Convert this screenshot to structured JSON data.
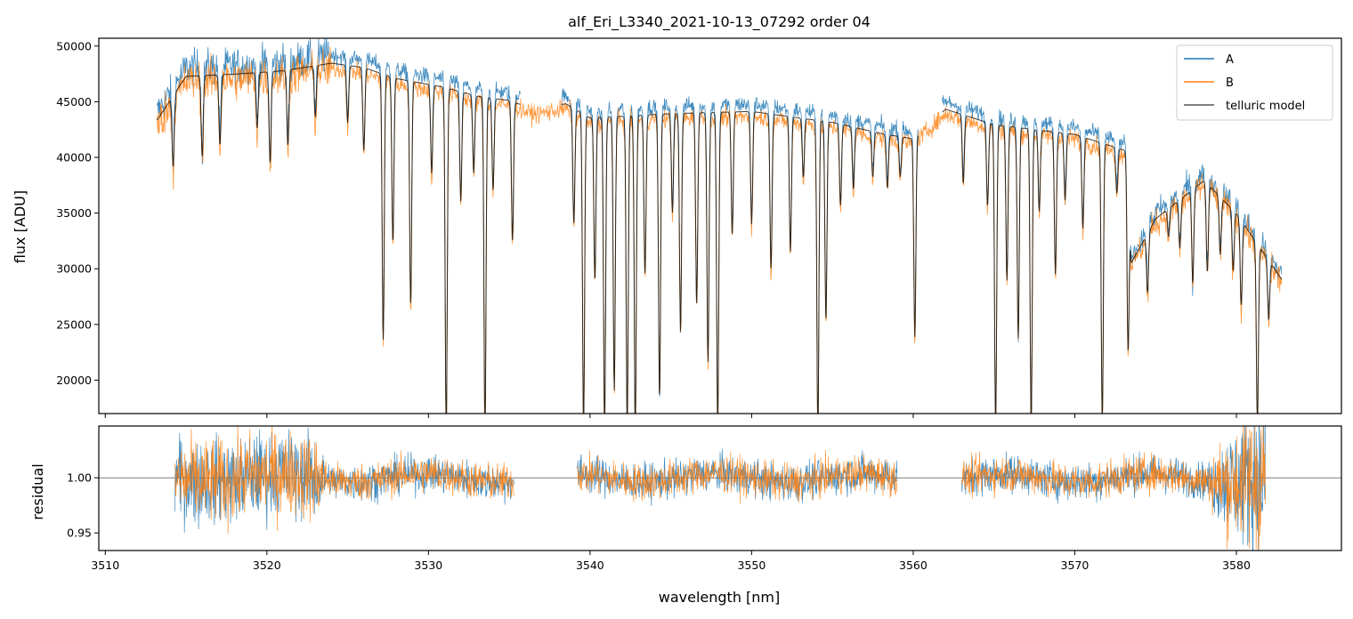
{
  "chart_data": [
    {
      "type": "line",
      "title": "alf_Eri_L3340_2021-10-13_07292  order 04",
      "xlabel": "",
      "ylabel": "flux [ADU]",
      "xlim": [
        3509.6,
        3586.5
      ],
      "ylim": [
        17000,
        50700
      ],
      "yticks": [
        20000,
        25000,
        30000,
        35000,
        40000,
        45000,
        50000
      ],
      "ytick_labels": [
        "20000",
        "25000",
        "30000",
        "35000",
        "40000",
        "45000",
        "50000"
      ],
      "legend": {
        "placement": "top-right",
        "entries": [
          "A",
          "B",
          "telluric model"
        ]
      },
      "series": [
        {
          "name": "A",
          "color": "#1f77b4"
        },
        {
          "name": "B",
          "color": "#ff7f0e"
        },
        {
          "name": "telluric model",
          "color": "#000000"
        }
      ],
      "continuum_points": [
        [
          3513.2,
          44000
        ],
        [
          3515,
          48000
        ],
        [
          3518,
          48200
        ],
        [
          3521,
          48500
        ],
        [
          3524,
          49200
        ],
        [
          3526,
          48800
        ],
        [
          3528,
          47800
        ],
        [
          3531,
          47000
        ],
        [
          3533,
          46200
        ],
        [
          3535,
          45800
        ],
        [
          3536.5,
          45000
        ],
        [
          3538.5,
          45500
        ],
        [
          3540,
          44200
        ],
        [
          3545,
          44600
        ],
        [
          3550,
          44800
        ],
        [
          3555,
          43800
        ],
        [
          3558,
          42800
        ],
        [
          3560,
          42300
        ],
        [
          3562,
          45000
        ],
        [
          3565,
          43600
        ],
        [
          3570,
          42700
        ],
        [
          3573.2,
          41200
        ],
        [
          3573.5,
          31000
        ],
        [
          3575,
          35000
        ],
        [
          3578,
          38500
        ],
        [
          3580,
          35500
        ],
        [
          3582.8,
          29500
        ]
      ],
      "gaps_A": [
        [
          3535.7,
          3538.2
        ],
        [
          3560.3,
          3561.8
        ]
      ],
      "absorption_lines": [
        [
          3514.2,
          40000
        ],
        [
          3516.0,
          41000
        ],
        [
          3517.1,
          42000
        ],
        [
          3519.4,
          43500
        ],
        [
          3520.2,
          40500
        ],
        [
          3521.3,
          42000
        ],
        [
          3523.0,
          44500
        ],
        [
          3525.0,
          44000
        ],
        [
          3526.0,
          41500
        ],
        [
          3527.2,
          25000
        ],
        [
          3527.8,
          33500
        ],
        [
          3528.9,
          28000
        ],
        [
          3530.2,
          39500
        ],
        [
          3531.1,
          17000
        ],
        [
          3532.0,
          37000
        ],
        [
          3532.8,
          39500
        ],
        [
          3533.5,
          17000
        ],
        [
          3534.0,
          38000
        ],
        [
          3535.2,
          33500
        ],
        [
          3539.0,
          35000
        ],
        [
          3539.6,
          17000
        ],
        [
          3540.3,
          30000
        ],
        [
          3540.9,
          17000
        ],
        [
          3541.5,
          20500
        ],
        [
          3542.3,
          17000
        ],
        [
          3542.8,
          17000
        ],
        [
          3543.4,
          30500
        ],
        [
          3544.3,
          19800
        ],
        [
          3545.1,
          36000
        ],
        [
          3545.6,
          25500
        ],
        [
          3546.6,
          28000
        ],
        [
          3547.3,
          23000
        ],
        [
          3547.9,
          17000
        ],
        [
          3548.8,
          34000
        ],
        [
          3550.0,
          35000
        ],
        [
          3551.2,
          31000
        ],
        [
          3552.4,
          32500
        ],
        [
          3553.2,
          39000
        ],
        [
          3554.1,
          17000
        ],
        [
          3554.6,
          26500
        ],
        [
          3555.5,
          36500
        ],
        [
          3556.3,
          38000
        ],
        [
          3557.5,
          39000
        ],
        [
          3558.4,
          38000
        ],
        [
          3559.2,
          39000
        ],
        [
          3560.1,
          25000
        ],
        [
          3563.1,
          38500
        ],
        [
          3564.6,
          36500
        ],
        [
          3565.1,
          17000
        ],
        [
          3565.8,
          30000
        ],
        [
          3566.5,
          25000
        ],
        [
          3567.3,
          17000
        ],
        [
          3567.8,
          36000
        ],
        [
          3568.8,
          30500
        ],
        [
          3569.4,
          37000
        ],
        [
          3570.5,
          34500
        ],
        [
          3571.7,
          17500
        ],
        [
          3572.6,
          37500
        ],
        [
          3573.3,
          23500
        ],
        [
          3574.5,
          28500
        ],
        [
          3575.8,
          33500
        ],
        [
          3576.5,
          32500
        ],
        [
          3577.3,
          29500
        ],
        [
          3578.2,
          30500
        ],
        [
          3579.0,
          32000
        ],
        [
          3579.8,
          30500
        ],
        [
          3580.3,
          27500
        ],
        [
          3581.3,
          17000
        ],
        [
          3582.0,
          26000
        ]
      ]
    },
    {
      "type": "line",
      "title": "",
      "xlabel": "wavelength [nm]",
      "ylabel": "residual",
      "xlim": [
        3509.6,
        3586.5
      ],
      "ylim": [
        0.934,
        1.047
      ],
      "xticks": [
        3510,
        3520,
        3530,
        3540,
        3550,
        3560,
        3570,
        3580
      ],
      "xtick_labels": [
        "3510",
        "3520",
        "3530",
        "3540",
        "3550",
        "3560",
        "3570",
        "3580"
      ],
      "yticks": [
        0.95,
        1.0
      ],
      "ytick_labels": [
        "0.95",
        "1.00"
      ],
      "reference_line": 1.0,
      "segments": [
        [
          3514.3,
          3535.3
        ],
        [
          3539.2,
          3559.0
        ],
        [
          3563.0,
          3581.8
        ]
      ],
      "series": [
        {
          "name": "A",
          "color": "#1f77b4"
        },
        {
          "name": "B",
          "color": "#ff7f0e"
        }
      ]
    }
  ]
}
